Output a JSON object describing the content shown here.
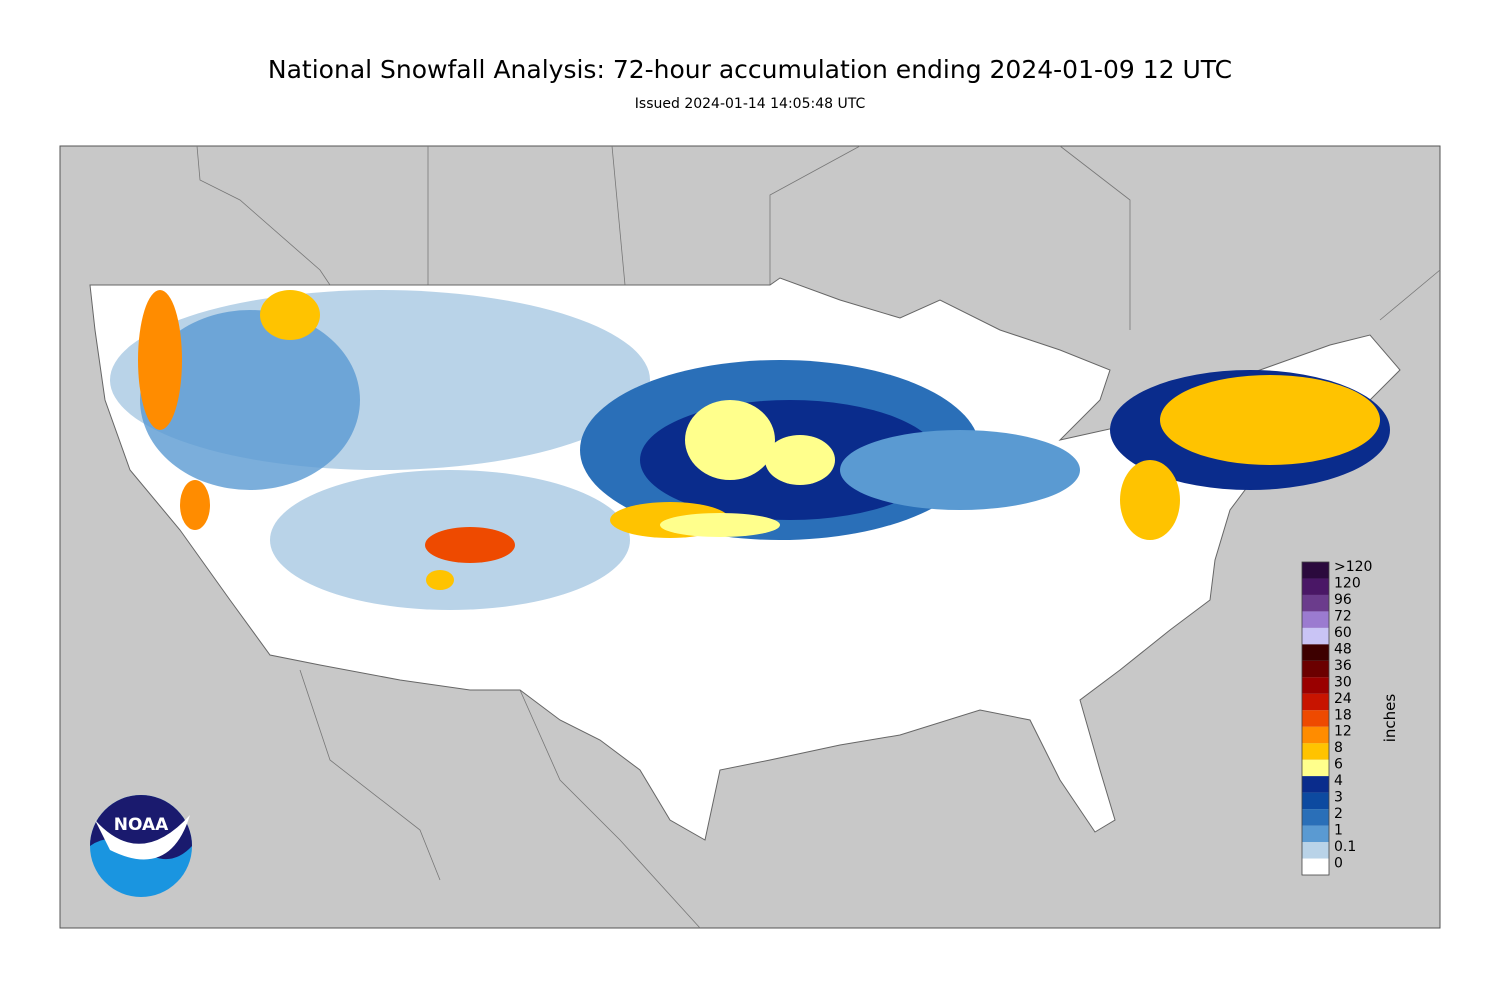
{
  "header": {
    "title": "National Snowfall Analysis: 72-hour accumulation ending 2024-01-09 12 UTC",
    "subtitle": "Issued 2024-01-14 14:05:48 UTC"
  },
  "legend": {
    "label": "inches",
    "labels": [
      ">120",
      120,
      96,
      72,
      60,
      48,
      36,
      30,
      24,
      18,
      12,
      8,
      6,
      4,
      3,
      2,
      1,
      0.1,
      0
    ],
    "colors": [
      "#2b0a3d",
      "#4a1766",
      "#6b3c8c",
      "#9b7bd0",
      "#c9c4f5",
      "#3d0000",
      "#6b0000",
      "#9a0000",
      "#c81400",
      "#ee4a00",
      "#ff8c00",
      "#ffc300",
      "#ffff8c",
      "#0a2c8c",
      "#0d4aa0",
      "#2a6fb8",
      "#5a9ad2",
      "#b9d3e8",
      "#ffffff"
    ]
  },
  "logo": {
    "text": "NOAA"
  }
}
